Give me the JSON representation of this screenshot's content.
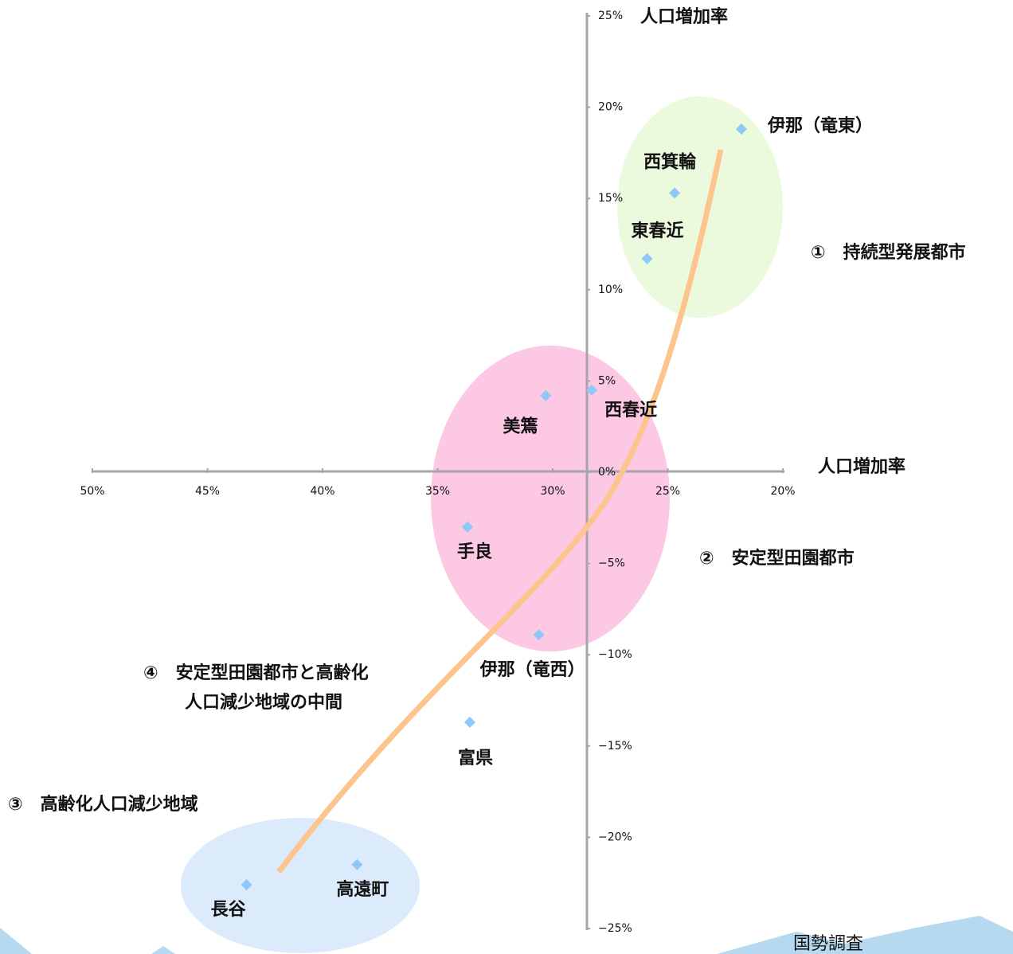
{
  "chart_data": {
    "type": "scatter",
    "x_label": "人口増加率",
    "y_label": "人口増加率",
    "xlim": [
      50,
      20
    ],
    "ylim": [
      -25,
      25
    ],
    "xticks": [
      {
        "value": 50,
        "label": "50%"
      },
      {
        "value": 45,
        "label": "45%"
      },
      {
        "value": 40,
        "label": "40%"
      },
      {
        "value": 35,
        "label": "35%"
      },
      {
        "value": 30,
        "label": "30%"
      },
      {
        "value": 25,
        "label": "25%"
      },
      {
        "value": 20,
        "label": "20%"
      }
    ],
    "yticks": [
      {
        "value": 25,
        "label": "25%"
      },
      {
        "value": 20,
        "label": "20%"
      },
      {
        "value": 15,
        "label": "15%"
      },
      {
        "value": 10,
        "label": "10%"
      },
      {
        "value": 5,
        "label": "5%"
      },
      {
        "value": 0,
        "label": "0%"
      },
      {
        "value": -5,
        "label": "−5%"
      },
      {
        "value": -10,
        "label": "−10%"
      },
      {
        "value": -15,
        "label": "−15%"
      },
      {
        "value": -20,
        "label": "−20%"
      },
      {
        "value": -25,
        "label": "−25%"
      }
    ],
    "color": "#8ec8f8",
    "labels": [
      "伊那（竜東）",
      "西箕輪",
      "東春近",
      "西春近",
      "美篶",
      "手良",
      "伊那（竜西）",
      "富県",
      "高遠町",
      "長谷"
    ],
    "x": [
      21.8,
      24.7,
      25.9,
      28.3,
      30.3,
      33.7,
      30.6,
      33.6,
      38.5,
      43.3
    ],
    "y": [
      18.8,
      15.3,
      11.7,
      4.5,
      4.2,
      -3.0,
      -8.9,
      -13.7,
      -21.5,
      -22.6
    ],
    "annotations": [
      "①　持続型発展都市",
      "②　安定型田園都市",
      "④　安定型田園都市と高齢化",
      "人口減少地域の中間",
      "③　高齢化人口減少地域"
    ],
    "source": "国勢調査"
  }
}
